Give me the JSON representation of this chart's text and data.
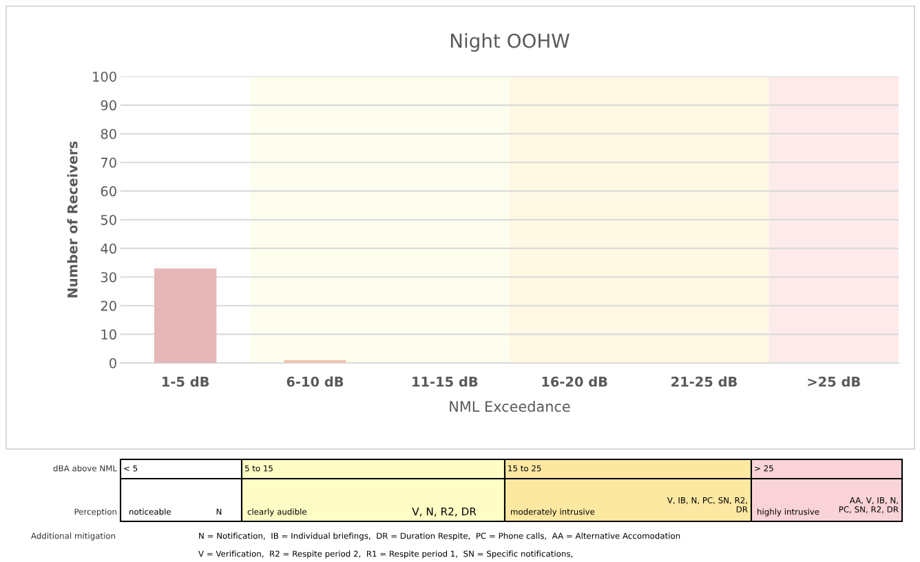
{
  "chart_data": {
    "type": "bar",
    "title": "Night OOHW",
    "xlabel": "NML Exceedance",
    "ylabel": "Number of Receivers",
    "categories": [
      "1-5 dB",
      "6-10 dB",
      "11-15 dB",
      "16-20 dB",
      "21-25 dB",
      ">25 dB"
    ],
    "values": [
      33,
      1,
      0,
      0,
      0,
      0
    ],
    "colors": [
      "#e6b7b8",
      "#f0c3b6",
      "#e6b7b8",
      "#e6b7b8",
      "#e6b7b8",
      "#e6b7b8"
    ],
    "ylim": [
      0,
      100
    ],
    "yticks": [
      0,
      10,
      20,
      30,
      40,
      50,
      60,
      70,
      80,
      90,
      100
    ],
    "grid": "y",
    "legend": false,
    "bands": [
      {
        "axis": "x",
        "from": "6-10 dB",
        "to": "11-15 dB",
        "color": "#fefeee"
      },
      {
        "axis": "x",
        "from": "16-20 dB",
        "to": "21-25 dB",
        "color": "#fef8e4"
      },
      {
        "axis": "x",
        "from": ">25 dB",
        "to": ">25 dB",
        "color": "#fdebeb"
      }
    ],
    "annotations": [
      "dBA above NML",
      "< 5",
      "5 to 15",
      "15 to 25",
      "> 25",
      "Perception",
      "noticeable",
      "N",
      "clearly audible",
      "V, N, R2, DR",
      "moderately intrusive",
      "V, IB, N, PC, SN, R2,\nDR",
      "highly intrusive",
      "AA, V, IB, N,\nPC, SN, R2, DR",
      "Additional mitigation",
      "N = Notification,  IB = Individual briefings,  DR = Duration Respite,  PC = Phone calls,  AA = Alternative Accomodation",
      "V = Verification,  R2 = Respite period 2,  R1 = Respite period 1,  SN = Specific notifications,"
    ]
  }
}
